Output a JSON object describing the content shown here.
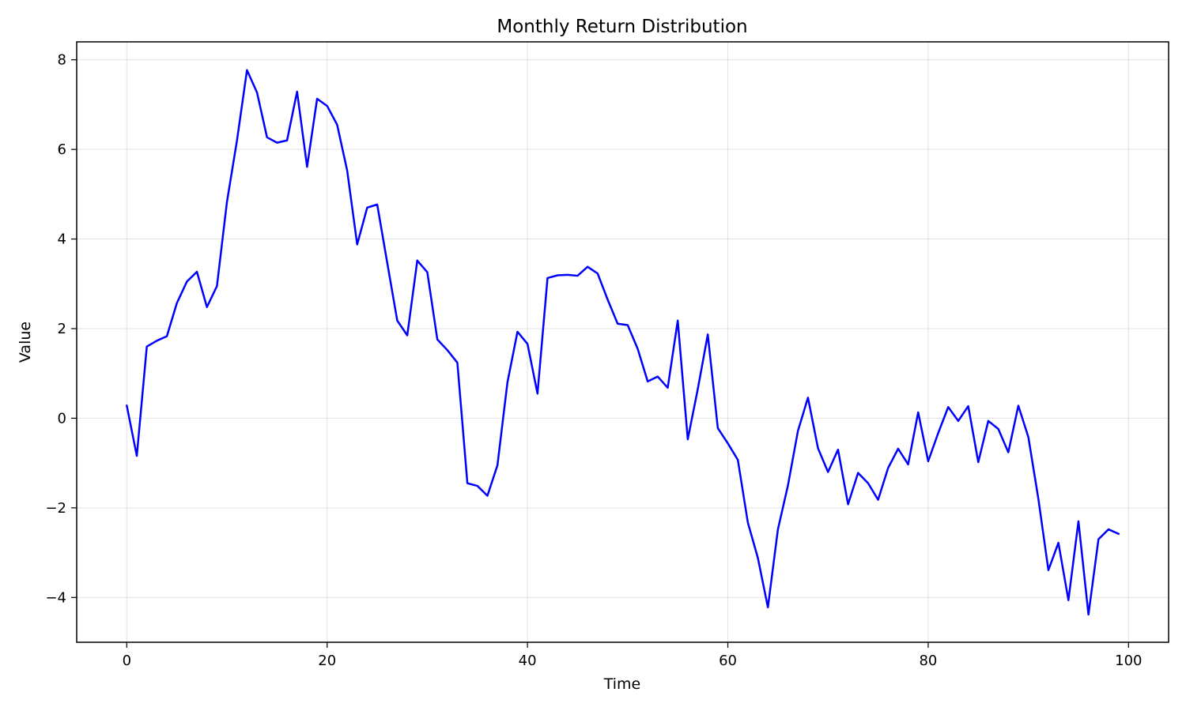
{
  "chart_data": {
    "type": "line",
    "title": "Monthly Return Distribution",
    "xlabel": "Time",
    "ylabel": "Value",
    "xlim": [
      -5,
      104
    ],
    "ylim": [
      -5,
      8.4
    ],
    "xticks": [
      0,
      20,
      40,
      60,
      80,
      100
    ],
    "yticks": [
      -4,
      -2,
      0,
      2,
      4,
      6,
      8
    ],
    "xtick_labels": [
      "0",
      "20",
      "40",
      "60",
      "80",
      "100"
    ],
    "ytick_labels": [
      "−4",
      "−2",
      "0",
      "2",
      "4",
      "6",
      "8"
    ],
    "grid": true,
    "legend": "none",
    "series": [
      {
        "color": "#0000ff",
        "x": [
          0,
          1,
          2,
          3,
          4,
          5,
          6,
          7,
          8,
          9,
          10,
          11,
          12,
          13,
          14,
          15,
          16,
          17,
          18,
          19,
          20,
          21,
          22,
          23,
          24,
          25,
          26,
          27,
          28,
          29,
          30,
          31,
          32,
          33,
          34,
          35,
          36,
          37,
          38,
          39,
          40,
          41,
          42,
          43,
          44,
          45,
          46,
          47,
          48,
          49,
          50,
          51,
          52,
          53,
          54,
          55,
          56,
          57,
          58,
          59,
          60,
          61,
          62,
          63,
          64,
          65,
          66,
          67,
          68,
          69,
          70,
          71,
          72,
          73,
          74,
          75,
          76,
          77,
          78,
          79,
          80,
          81,
          82,
          83,
          84,
          85,
          86,
          87,
          88,
          89,
          90,
          91,
          92,
          93,
          94,
          95,
          96,
          97,
          98,
          99
        ],
        "y": [
          0.28,
          -0.84,
          1.6,
          1.73,
          1.83,
          2.57,
          3.05,
          3.27,
          2.48,
          2.95,
          4.83,
          6.2,
          7.77,
          7.27,
          6.27,
          6.15,
          6.2,
          7.29,
          5.61,
          7.13,
          6.97,
          6.55,
          5.53,
          3.88,
          4.7,
          4.77,
          3.47,
          2.18,
          1.85,
          3.52,
          3.26,
          1.76,
          1.52,
          1.24,
          -1.45,
          -1.51,
          -1.73,
          -1.05,
          0.8,
          1.93,
          1.66,
          0.55,
          3.13,
          3.19,
          3.2,
          3.18,
          3.38,
          3.23,
          2.65,
          2.11,
          2.08,
          1.55,
          0.82,
          0.93,
          0.68,
          2.18,
          -0.47,
          0.65,
          1.87,
          -0.22,
          -0.56,
          -0.93,
          -2.33,
          -3.12,
          -4.22,
          -2.48,
          -1.5,
          -0.28,
          0.46,
          -0.67,
          -1.2,
          -0.7,
          -1.92,
          -1.22,
          -1.45,
          -1.82,
          -1.11,
          -0.68,
          -1.03,
          0.13,
          -0.96,
          -0.33,
          0.25,
          -0.06,
          0.27,
          -0.98,
          -0.06,
          -0.24,
          -0.76,
          0.28,
          -0.42,
          -1.8,
          -3.39,
          -2.78,
          -4.06,
          -2.3,
          -4.38,
          -2.7,
          -2.48,
          -2.58
        ]
      }
    ]
  }
}
